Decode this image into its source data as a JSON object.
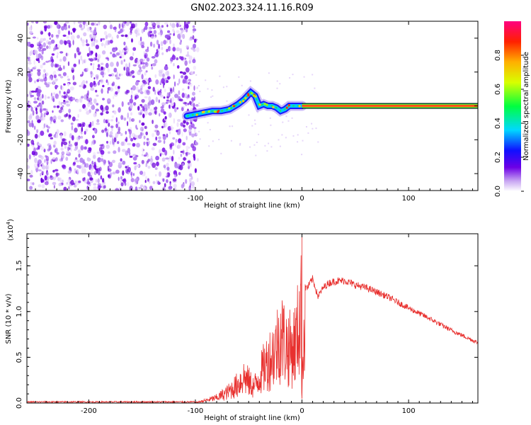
{
  "title": "GN02.2023.324.11.16.R09",
  "chart_data": [
    {
      "type": "heatmap",
      "title": "GN02.2023.324.11.16.R09",
      "xlabel": "Height of straight line (km)",
      "ylabel": "Frequency (Hz)",
      "xlim": [
        -258,
        165
      ],
      "ylim": [
        -50,
        50
      ],
      "xticks": [
        -200,
        -100,
        0,
        100
      ],
      "yticks": [
        40,
        20,
        0,
        -20,
        -40
      ],
      "colorbar": {
        "label": "Normalized spectral amplitude",
        "range": [
          0,
          1
        ],
        "ticks": [
          "0.0",
          "0.2",
          "0.4",
          "0.6",
          "0.8"
        ]
      },
      "noise_region_x": [
        -258,
        -103
      ],
      "signal_trace": {
        "x": [
          -108,
          -100,
          -92,
          -84,
          -76,
          -68,
          -60,
          -54,
          -48,
          -44,
          -40,
          -36,
          -32,
          -28,
          -24,
          -20,
          -16,
          -12,
          -8,
          -4,
          0,
          10,
          165
        ],
        "y": [
          -6,
          -5,
          -4,
          -3,
          -3,
          -2,
          1,
          4,
          8,
          6,
          0,
          1,
          0,
          0,
          -1,
          -3,
          -2,
          0,
          0,
          0,
          0,
          0,
          0
        ],
        "steady_tone_start_km": 0,
        "steady_tone_hz": 0
      },
      "grid": false
    },
    {
      "type": "line",
      "xlabel": "Height of straight line (km)",
      "ylabel": "SNR (10 * v/v)",
      "y_multiplier_label": "(x10",
      "y_multiplier_exp": "4",
      "y_multiplier_close": ")",
      "xlim": [
        -258,
        165
      ],
      "ylim": [
        0,
        1.85
      ],
      "xticks": [
        -200,
        -100,
        0,
        100
      ],
      "yticks": [
        "0.0",
        "0.5",
        "1.0",
        "1.5"
      ],
      "series_color": "#e8312f",
      "envelope": {
        "x": [
          -258,
          -100,
          -90,
          -80,
          -70,
          -60,
          -55,
          -50,
          -45,
          -40,
          -35,
          -30,
          -25,
          -20,
          -15,
          -10,
          -5,
          -1,
          0,
          1,
          5,
          10,
          15,
          20,
          25,
          30,
          40,
          50,
          60,
          80,
          100,
          120,
          140,
          165
        ],
        "y": [
          0.01,
          0.01,
          0.05,
          0.1,
          0.2,
          0.35,
          0.5,
          0.4,
          0.3,
          0.5,
          0.7,
          0.85,
          1.0,
          1.3,
          1.1,
          1.0,
          1.2,
          1.85,
          0.1,
          1.3,
          1.3,
          1.4,
          1.2,
          1.3,
          1.35,
          1.37,
          1.38,
          1.33,
          1.3,
          1.2,
          1.07,
          0.95,
          0.82,
          0.68
        ]
      },
      "peak": {
        "x": 0,
        "y": 1.85
      },
      "grid": false
    }
  ]
}
